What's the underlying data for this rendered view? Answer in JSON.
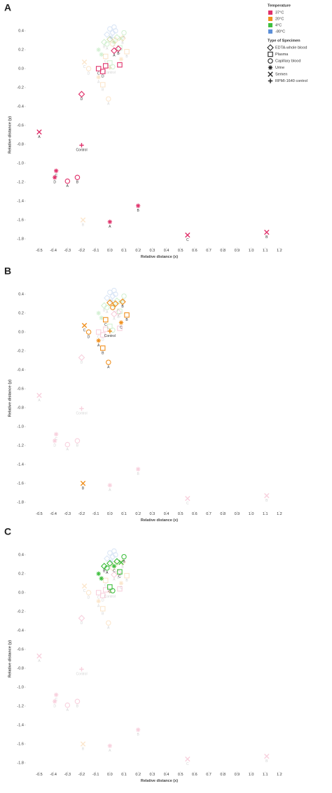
{
  "legend": {
    "temperature_title": "Temperature",
    "temperatures": [
      {
        "name": "37°C",
        "color": "#e0306a"
      },
      {
        "name": "20°C",
        "color": "#f0901e"
      },
      {
        "name": "4°C",
        "color": "#3fbf3f"
      },
      {
        "name": "-80°C",
        "color": "#5c8fd8"
      }
    ],
    "specimen_title": "Type of Specimen",
    "specimens": [
      {
        "name": "EDTA-whole blood",
        "shape": "diamond"
      },
      {
        "name": "Plasma",
        "shape": "square"
      },
      {
        "name": "Capillary blood",
        "shape": "circle"
      },
      {
        "name": "Urine",
        "shape": "star"
      },
      {
        "name": "Semen",
        "shape": "x"
      },
      {
        "name": "RPMI-1640 control",
        "shape": "plus"
      }
    ]
  },
  "chart_data": [
    {
      "type": "scatter",
      "panel": "A",
      "highlight": "37°C",
      "xlabel": "Relative distance (x)",
      "ylabel": "Relative distance (y)",
      "xlim": [
        -0.55,
        1.25
      ],
      "ylim": [
        -1.9,
        0.5
      ],
      "xticks": [
        -0.5,
        -0.4,
        -0.3,
        -0.2,
        -0.1,
        {
          "value": 0,
          "label": "0.0"
        },
        0.1,
        0.2,
        0.3,
        0.4,
        0.5,
        0.6,
        0.7,
        0.8,
        0.9,
        {
          "value": 1,
          "label": "1.0"
        },
        1.1,
        1.2
      ],
      "yticks": [
        0.4,
        0.2,
        {
          "value": 0,
          "label": "0.0"
        },
        -0.2,
        -0.4,
        -0.6,
        -0.8,
        {
          "value": -1,
          "label": "-1.0"
        },
        -1.2,
        -1.4,
        -1.6,
        -1.8
      ],
      "series": [
        {
          "name": "37°C",
          "color": "#e0306a",
          "x": [
            -0.2,
            0.03,
            0.06,
            -0.08,
            -0.03,
            0.07,
            -0.05,
            -0.38,
            -0.39,
            0.0,
            0.2,
            -0.5,
            0.55,
            1.11,
            -0.3,
            -0.23,
            -0.2
          ],
          "values": [
            -0.27,
            0.19,
            0.21,
            0.0,
            0.03,
            0.04,
            -0.03,
            -1.08,
            -1.15,
            -1.62,
            -1.45,
            -0.67,
            -1.76,
            -1.73,
            -1.19,
            -1.15,
            -0.81
          ],
          "shapes": [
            "diamond",
            "diamond",
            "diamond",
            "square",
            "square",
            "square",
            "square",
            "star",
            "star",
            "star",
            "star",
            "x",
            "x",
            "x",
            "circle",
            "circle",
            "plus"
          ],
          "labels": [
            "D",
            "A",
            "B",
            "C",
            null,
            null,
            "D",
            "C",
            "D",
            "A",
            "B",
            "A",
            "C",
            "B",
            "A",
            "B",
            "Control"
          ]
        },
        {
          "name": "20°C",
          "color": "#f0901e",
          "x": [
            0.0,
            0.04,
            0.09,
            0.02,
            0.12,
            -0.03,
            -0.15,
            -0.08,
            -0.05,
            0.08,
            -0.18,
            -0.01,
            -0.19,
            0.0
          ],
          "values": [
            0.31,
            0.3,
            0.32,
            0.26,
            0.18,
            0.13,
            0.0,
            -0.09,
            -0.17,
            0.1,
            0.07,
            -0.32,
            -1.6,
            0.01
          ],
          "shapes": [
            "diamond",
            "diamond",
            "diamond",
            "circle",
            "square",
            "square",
            "circle",
            "star",
            "square",
            "star",
            "x",
            "circle",
            "x",
            "plus"
          ],
          "labels": [
            null,
            null,
            "B",
            null,
            "B",
            "C",
            "D",
            "A",
            "B",
            "C",
            "C",
            "A",
            "B",
            "Control"
          ]
        },
        {
          "name": "4°C",
          "color": "#3fbf3f",
          "x": [
            0.1,
            0.05,
            0.0,
            0.03,
            -0.02,
            0.08,
            -0.08,
            -0.06,
            0.0,
            0.07,
            -0.04,
            0.02
          ],
          "values": [
            0.38,
            0.33,
            0.31,
            0.28,
            0.26,
            0.32,
            0.2,
            0.15,
            0.06,
            0.22,
            0.28,
            0.02
          ],
          "shapes": [
            "circle",
            "diamond",
            "diamond",
            "star",
            "circle",
            "x",
            "star",
            "star",
            "square",
            "square",
            "diamond",
            "circle"
          ],
          "labels": [
            "B",
            null,
            null,
            "C",
            "A",
            null,
            null,
            null,
            "C",
            "C",
            "B",
            null
          ]
        },
        {
          "name": "-80°C",
          "color": "#5c8fd8",
          "x": [
            0.0,
            0.02,
            0.04,
            -0.02,
            0.03,
            0.01
          ],
          "values": [
            0.42,
            0.38,
            0.4,
            0.36,
            0.44,
            0.33
          ],
          "shapes": [
            "circle",
            "diamond",
            "circle",
            "diamond",
            "circle",
            "star"
          ],
          "labels": [
            null,
            null,
            null,
            null,
            null,
            null
          ]
        }
      ]
    },
    {
      "type": "scatter",
      "panel": "B",
      "highlight": "20°C",
      "xlabel": "Relative distance (x)",
      "ylabel": "Relative distance (y)",
      "xlim": [
        -0.55,
        1.25
      ],
      "ylim": [
        -1.9,
        0.5
      ],
      "xticks": [
        -0.5,
        -0.4,
        -0.3,
        -0.2,
        -0.1,
        {
          "value": 0,
          "label": "0.0"
        },
        0.1,
        0.2,
        0.3,
        0.4,
        0.5,
        0.6,
        0.7,
        0.8,
        0.9,
        {
          "value": 1,
          "label": "1.0"
        },
        1.1,
        1.2
      ],
      "yticks": [
        0.4,
        0.2,
        {
          "value": 0,
          "label": "0.0"
        },
        -0.2,
        -0.4,
        -0.6,
        -0.8,
        {
          "value": -1,
          "label": "-1.0"
        },
        -1.2,
        -1.4,
        -1.6,
        -1.8
      ],
      "series": [
        {
          "name": "37°C",
          "color": "#e0306a",
          "x": [
            -0.2,
            0.03,
            0.06,
            -0.08,
            -0.03,
            0.07,
            -0.05,
            -0.38,
            -0.39,
            0.0,
            0.2,
            -0.5,
            0.55,
            1.11,
            -0.3,
            -0.23,
            -0.2
          ],
          "values": [
            -0.27,
            0.19,
            0.21,
            0.0,
            0.03,
            0.04,
            -0.03,
            -1.08,
            -1.15,
            -1.62,
            -1.45,
            -0.67,
            -1.76,
            -1.73,
            -1.19,
            -1.15,
            -0.81
          ],
          "shapes": [
            "diamond",
            "diamond",
            "diamond",
            "square",
            "square",
            "square",
            "square",
            "star",
            "star",
            "star",
            "star",
            "x",
            "x",
            "x",
            "circle",
            "circle",
            "plus"
          ],
          "labels": [
            "D",
            "A",
            "B",
            "C",
            null,
            null,
            "D",
            "C",
            "D",
            "A",
            "B",
            "A",
            "C",
            "B",
            "A",
            "B",
            "Control"
          ]
        },
        {
          "name": "20°C",
          "color": "#f0901e",
          "x": [
            0.0,
            0.04,
            0.09,
            0.02,
            0.12,
            -0.03,
            -0.15,
            -0.08,
            -0.05,
            0.08,
            -0.18,
            -0.01,
            -0.19,
            0.0
          ],
          "values": [
            0.31,
            0.3,
            0.32,
            0.26,
            0.18,
            0.13,
            0.0,
            -0.09,
            -0.17,
            0.1,
            0.07,
            -0.32,
            -1.6,
            0.01
          ],
          "shapes": [
            "diamond",
            "diamond",
            "diamond",
            "circle",
            "square",
            "square",
            "circle",
            "star",
            "square",
            "star",
            "x",
            "circle",
            "x",
            "plus"
          ],
          "labels": [
            null,
            null,
            "B",
            null,
            "B",
            "C",
            "D",
            "A",
            "B",
            "C",
            "C",
            "A",
            "B",
            "Control"
          ]
        },
        {
          "name": "4°C",
          "color": "#3fbf3f",
          "x": [
            0.1,
            0.05,
            0.0,
            0.03,
            -0.02,
            0.08,
            -0.08,
            -0.06,
            0.0,
            0.07,
            -0.04,
            0.02
          ],
          "values": [
            0.38,
            0.33,
            0.31,
            0.28,
            0.26,
            0.32,
            0.2,
            0.15,
            0.06,
            0.22,
            0.28,
            0.02
          ],
          "shapes": [
            "circle",
            "diamond",
            "diamond",
            "star",
            "circle",
            "x",
            "star",
            "star",
            "square",
            "square",
            "diamond",
            "circle"
          ],
          "labels": [
            "B",
            null,
            null,
            "C",
            "A",
            null,
            null,
            null,
            "C",
            "C",
            "B",
            null
          ]
        },
        {
          "name": "-80°C",
          "color": "#5c8fd8",
          "x": [
            0.0,
            0.02,
            0.04,
            -0.02,
            0.03,
            0.01
          ],
          "values": [
            0.42,
            0.38,
            0.4,
            0.36,
            0.44,
            0.33
          ],
          "shapes": [
            "circle",
            "diamond",
            "circle",
            "diamond",
            "circle",
            "star"
          ],
          "labels": [
            null,
            null,
            null,
            null,
            null,
            null
          ]
        }
      ]
    },
    {
      "type": "scatter",
      "panel": "C",
      "highlight": "4°C",
      "xlabel": "Relative distance (x)",
      "ylabel": "Relative distance (y)",
      "xlim": [
        -0.55,
        1.25
      ],
      "ylim": [
        -1.9,
        0.5
      ],
      "xticks": [
        -0.5,
        -0.4,
        -0.3,
        -0.2,
        -0.1,
        {
          "value": 0,
          "label": "0.0"
        },
        0.1,
        0.2,
        0.3,
        0.4,
        0.5,
        0.6,
        0.7,
        0.8,
        0.9,
        {
          "value": 1,
          "label": "1.0"
        },
        1.1,
        1.2
      ],
      "yticks": [
        0.4,
        0.2,
        {
          "value": 0,
          "label": "0.0"
        },
        -0.2,
        -0.4,
        -0.6,
        -0.8,
        {
          "value": -1,
          "label": "-1.0"
        },
        -1.2,
        -1.4,
        -1.6,
        -1.8
      ],
      "series": [
        {
          "name": "37°C",
          "color": "#e0306a",
          "x": [
            -0.2,
            0.03,
            0.06,
            -0.08,
            -0.03,
            0.07,
            -0.05,
            -0.38,
            -0.39,
            0.0,
            0.2,
            -0.5,
            0.55,
            1.11,
            -0.3,
            -0.23,
            -0.2
          ],
          "values": [
            -0.27,
            0.19,
            0.21,
            0.0,
            0.03,
            0.04,
            -0.03,
            -1.08,
            -1.15,
            -1.62,
            -1.45,
            -0.67,
            -1.76,
            -1.73,
            -1.19,
            -1.15,
            -0.81
          ],
          "shapes": [
            "diamond",
            "diamond",
            "diamond",
            "square",
            "square",
            "square",
            "square",
            "star",
            "star",
            "star",
            "star",
            "x",
            "x",
            "x",
            "circle",
            "circle",
            "plus"
          ],
          "labels": [
            "D",
            "A",
            "B",
            "C",
            null,
            null,
            "D",
            "C",
            "D",
            "A",
            "B",
            "A",
            "C",
            "B",
            "A",
            "B",
            "Control"
          ]
        },
        {
          "name": "20°C",
          "color": "#f0901e",
          "x": [
            0.0,
            0.04,
            0.09,
            0.02,
            0.12,
            -0.03,
            -0.15,
            -0.08,
            -0.05,
            0.08,
            -0.18,
            -0.01,
            -0.19,
            0.0
          ],
          "values": [
            0.31,
            0.3,
            0.32,
            0.26,
            0.18,
            0.13,
            0.0,
            -0.09,
            -0.17,
            0.1,
            0.07,
            -0.32,
            -1.6,
            0.01
          ],
          "shapes": [
            "diamond",
            "diamond",
            "diamond",
            "circle",
            "square",
            "square",
            "circle",
            "star",
            "square",
            "star",
            "x",
            "circle",
            "x",
            "plus"
          ],
          "labels": [
            null,
            null,
            "B",
            null,
            "B",
            "C",
            "D",
            "A",
            "B",
            "C",
            "C",
            "A",
            "B",
            "Control"
          ]
        },
        {
          "name": "4°C",
          "color": "#3fbf3f",
          "x": [
            0.1,
            0.05,
            0.0,
            0.03,
            -0.02,
            0.08,
            -0.08,
            -0.06,
            0.0,
            0.07,
            -0.04,
            0.02
          ],
          "values": [
            0.38,
            0.33,
            0.31,
            0.28,
            0.26,
            0.32,
            0.2,
            0.15,
            0.06,
            0.22,
            0.28,
            0.02
          ],
          "shapes": [
            "circle",
            "diamond",
            "diamond",
            "star",
            "circle",
            "x",
            "star",
            "star",
            "square",
            "square",
            "diamond",
            "circle"
          ],
          "labels": [
            "B",
            null,
            null,
            "C",
            "A",
            null,
            null,
            null,
            "C",
            "C",
            "B",
            null
          ]
        },
        {
          "name": "-80°C",
          "color": "#5c8fd8",
          "x": [
            0.0,
            0.02,
            0.04,
            -0.02,
            0.03,
            0.01
          ],
          "values": [
            0.42,
            0.38,
            0.4,
            0.36,
            0.44,
            0.33
          ],
          "shapes": [
            "circle",
            "diamond",
            "circle",
            "diamond",
            "circle",
            "star"
          ],
          "labels": [
            null,
            null,
            null,
            null,
            null,
            null
          ]
        }
      ]
    }
  ]
}
